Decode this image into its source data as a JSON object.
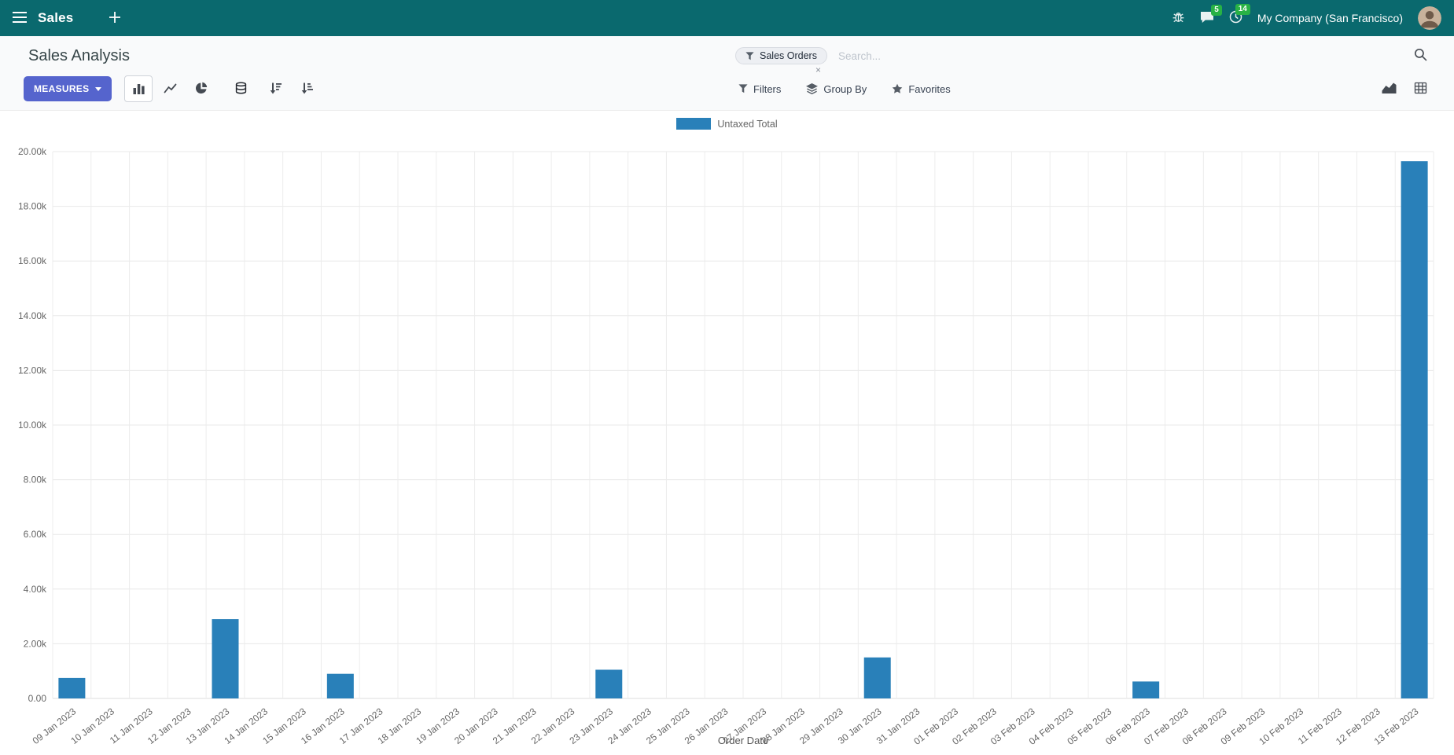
{
  "colors": {
    "navbar_bg": "#0a696e",
    "primary_button": "#5564cd",
    "badge": "#28b245"
  },
  "navbar": {
    "app_name": "Sales",
    "company": "My Company (San Francisco)",
    "messages_badge": "5",
    "activities_badge": "14"
  },
  "control_panel": {
    "breadcrumb": "Sales Analysis",
    "measures_label": "MEASURES",
    "filters_label": "Filters",
    "group_by_label": "Group By",
    "favorites_label": "Favorites",
    "search_facet": "Sales Orders",
    "facet_remove": "×",
    "search_placeholder": "Search..."
  },
  "chart_data": {
    "type": "bar",
    "title": "",
    "xlabel": "Order Date",
    "ylabel": "",
    "ylim": [
      0,
      20000
    ],
    "ytick_step": 2000,
    "ytick_labels": [
      "0.00",
      "2.00k",
      "4.00k",
      "6.00k",
      "8.00k",
      "10.00k",
      "12.00k",
      "14.00k",
      "16.00k",
      "18.00k",
      "20.00k"
    ],
    "grid": true,
    "legend_position": "top",
    "categories": [
      "09 Jan 2023",
      "10 Jan 2023",
      "11 Jan 2023",
      "12 Jan 2023",
      "13 Jan 2023",
      "14 Jan 2023",
      "15 Jan 2023",
      "16 Jan 2023",
      "17 Jan 2023",
      "18 Jan 2023",
      "19 Jan 2023",
      "20 Jan 2023",
      "21 Jan 2023",
      "22 Jan 2023",
      "23 Jan 2023",
      "24 Jan 2023",
      "25 Jan 2023",
      "26 Jan 2023",
      "27 Jan 2023",
      "28 Jan 2023",
      "29 Jan 2023",
      "30 Jan 2023",
      "31 Jan 2023",
      "01 Feb 2023",
      "02 Feb 2023",
      "03 Feb 2023",
      "04 Feb 2023",
      "05 Feb 2023",
      "06 Feb 2023",
      "07 Feb 2023",
      "08 Feb 2023",
      "09 Feb 2023",
      "10 Feb 2023",
      "11 Feb 2023",
      "12 Feb 2023",
      "13 Feb 2023"
    ],
    "series": [
      {
        "name": "Untaxed Total",
        "color": "#2980b9",
        "values": [
          750,
          0,
          0,
          0,
          2900,
          0,
          0,
          900,
          0,
          0,
          0,
          0,
          0,
          0,
          1050,
          0,
          0,
          0,
          0,
          0,
          0,
          1500,
          0,
          0,
          0,
          0,
          0,
          0,
          620,
          0,
          0,
          0,
          0,
          0,
          0,
          19650
        ]
      }
    ]
  }
}
